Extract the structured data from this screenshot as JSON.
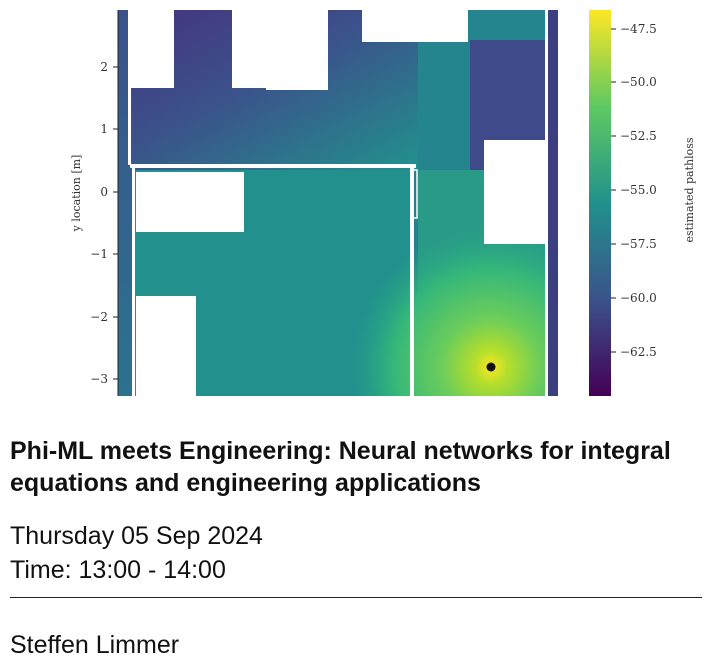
{
  "figure": {
    "y_axis_label": "y location [m]",
    "y_ticks": [
      "2",
      "1",
      "0",
      "−1",
      "−2",
      "−3"
    ],
    "colorbar_label": "estimated pathloss",
    "colorbar_ticks": [
      "−47.5",
      "−50.0",
      "−52.5",
      "−55.0",
      "−57.5",
      "−60.0",
      "−62.5"
    ],
    "colormap": [
      "#440154",
      "#3b528b",
      "#21918c",
      "#5ec962",
      "#fde725"
    ],
    "transmitter_marker_color": "#111111"
  },
  "event": {
    "title": "Phi-ML meets Engineering: Neural networks for integral equations and engineering applications",
    "date": "Thursday 05 Sep 2024",
    "time": "Time: 13:00 - 14:00",
    "speaker": "Steffen Limmer"
  }
}
